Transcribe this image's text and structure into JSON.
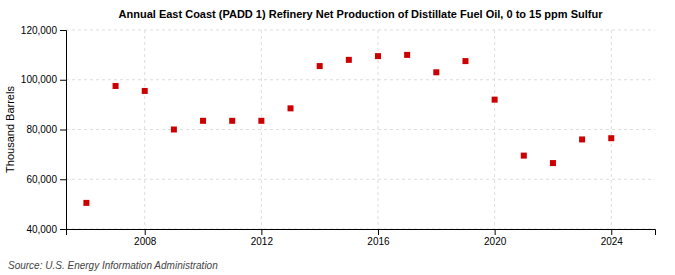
{
  "chart_data": {
    "type": "scatter",
    "title": "Annual East Coast (PADD 1) Refinery Net Production of Distillate Fuel Oil, 0 to 15 ppm Sulfur",
    "ylabel": "Thousand Barrels",
    "source": "Source: U.S. Energy Information Administration",
    "x": [
      2006,
      2007,
      2008,
      2009,
      2010,
      2011,
      2012,
      2013,
      2014,
      2015,
      2016,
      2017,
      2018,
      2019,
      2020,
      2021,
      2022,
      2023,
      2024
    ],
    "values": [
      50500,
      97500,
      95500,
      80000,
      83500,
      83500,
      83500,
      88500,
      105500,
      108000,
      109500,
      110000,
      103000,
      107500,
      92000,
      69500,
      66500,
      76000,
      76500
    ],
    "color": "#cc0000",
    "marker": "square",
    "xlim": [
      2005.3,
      2025.5
    ],
    "xticks": [
      2008,
      2012,
      2016,
      2020,
      2024
    ],
    "ylim": [
      40000,
      120000
    ],
    "yticks": [
      {
        "value": 40000,
        "label": "40,000"
      },
      {
        "value": 60000,
        "label": "60,000"
      },
      {
        "value": 80000,
        "label": "80,000"
      },
      {
        "value": 100000,
        "label": "100,000"
      },
      {
        "value": 120000,
        "label": "120,000"
      }
    ],
    "grid": true
  }
}
